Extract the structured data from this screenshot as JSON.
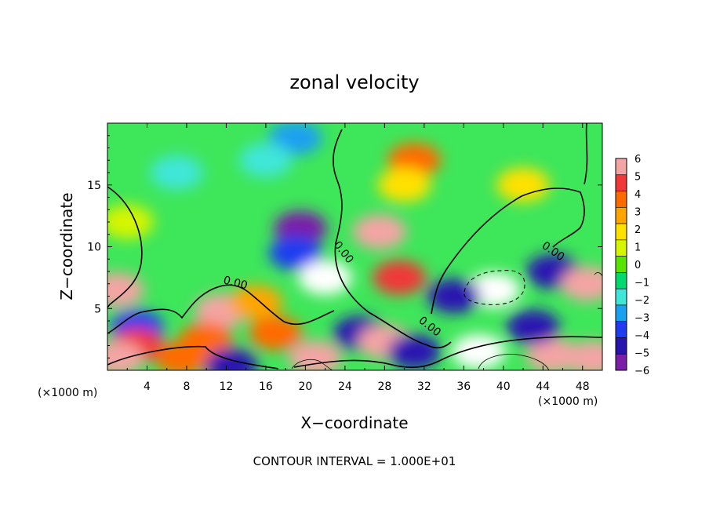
{
  "chart_data": {
    "type": "heatmap",
    "title": "zonal velocity",
    "xlabel": "X−coordinate",
    "ylabel": "Z−coordinate",
    "x_unit_left": "(×1000 m)",
    "x_unit_right": "(×1000 m)",
    "footer": "CONTOUR INTERVAL = 1.000E+01",
    "xlim": [
      0,
      50
    ],
    "ylim": [
      0,
      20
    ],
    "x_ticks": [
      4,
      8,
      12,
      16,
      20,
      24,
      28,
      32,
      36,
      40,
      44,
      48
    ],
    "y_ticks": [
      5,
      10,
      15
    ],
    "colorbar": {
      "levels": [
        6,
        5,
        4,
        3,
        2,
        1,
        0,
        -1,
        -2,
        -3,
        -4,
        -5,
        -6
      ],
      "colors": [
        "#f4a4a4",
        "#f03838",
        "#ff6a00",
        "#ffa500",
        "#ffe100",
        "#d6f500",
        "#58e400",
        "#00d870",
        "#40e6d8",
        "#1aa0f0",
        "#1e3cf0",
        "#2a14b0",
        "#7a1fa8"
      ]
    },
    "contour_labels": [
      "0.00",
      "0.00",
      "0.00",
      "0.00"
    ],
    "features": [
      {
        "x": 19,
        "z": 18.8,
        "value": -3.5
      },
      {
        "x": 16,
        "z": 17,
        "value": -2.5
      },
      {
        "x": 7,
        "z": 16,
        "value": -1.8
      },
      {
        "x": 2,
        "z": 12,
        "value": 0.5
      },
      {
        "x": 31,
        "z": 17,
        "value": 3.5
      },
      {
        "x": 30,
        "z": 15,
        "value": 2.2
      },
      {
        "x": 42,
        "z": 15,
        "value": 1.5
      },
      {
        "x": 19.5,
        "z": 11.5,
        "value": -6
      },
      {
        "x": 19,
        "z": 9.5,
        "value": -4
      },
      {
        "x": 27.5,
        "z": 11.2,
        "value": 5.5
      },
      {
        "x": 29.5,
        "z": 7.5,
        "value": 5
      },
      {
        "x": 22,
        "z": 7.5,
        "value": -8
      },
      {
        "x": 39,
        "z": 6.5,
        "value": -8.5
      },
      {
        "x": 35,
        "z": 6,
        "value": -5
      },
      {
        "x": 45,
        "z": 8,
        "value": -5
      },
      {
        "x": 48.5,
        "z": 7,
        "value": 6.5
      },
      {
        "x": 1,
        "z": 6.5,
        "value": 6.5
      },
      {
        "x": 3,
        "z": 3.5,
        "value": -4
      },
      {
        "x": 3,
        "z": 2,
        "value": 4.5
      },
      {
        "x": 11.5,
        "z": 4.8,
        "value": 6.5
      },
      {
        "x": 10,
        "z": 2.5,
        "value": 4
      },
      {
        "x": 15,
        "z": 5.5,
        "value": 3
      },
      {
        "x": 17,
        "z": 3,
        "value": 3.5
      },
      {
        "x": 12.5,
        "z": 0.4,
        "value": -5
      },
      {
        "x": 25.5,
        "z": 3,
        "value": -5
      },
      {
        "x": 28,
        "z": 2.3,
        "value": 6.5
      },
      {
        "x": 31,
        "z": 1.5,
        "value": -5
      },
      {
        "x": 37.5,
        "z": 1.5,
        "value": 7
      },
      {
        "x": 45,
        "z": 1.2,
        "value": 6.5
      },
      {
        "x": 43,
        "z": 3.5,
        "value": -5
      },
      {
        "x": 49,
        "z": 1,
        "value": 6.5
      },
      {
        "x": 21,
        "z": 1,
        "value": 6
      },
      {
        "x": 7.5,
        "z": 1,
        "value": 4
      },
      {
        "x": 1,
        "z": 1,
        "value": 6.5
      }
    ]
  }
}
